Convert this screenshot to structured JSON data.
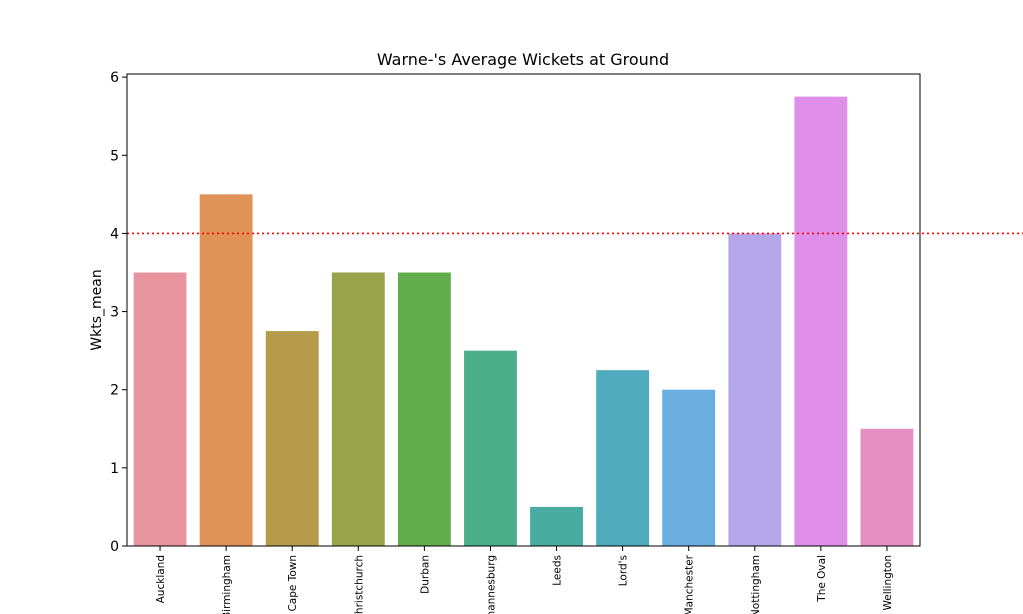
{
  "chart_data": {
    "type": "bar",
    "title": "Warne-'s Average Wickets at Ground",
    "xlabel": "",
    "ylabel": "Wkts_mean",
    "ylim": [
      0,
      6.04
    ],
    "yticks": [
      0,
      1,
      2,
      3,
      4,
      5,
      6
    ],
    "categories": [
      "Auckland",
      "Birmingham",
      "Cape Town",
      "Christchurch",
      "Durban",
      "Johannesburg",
      "Leeds",
      "Lord's",
      "Manchester",
      "Nottingham",
      "The Oval",
      "Wellington"
    ],
    "values": [
      3.5,
      4.5,
      2.75,
      3.5,
      3.5,
      2.5,
      0.5,
      2.25,
      2.0,
      4.0,
      5.75,
      1.5
    ],
    "colors": [
      "#e8959f",
      "#e09257",
      "#b59b4a",
      "#98a34a",
      "#62ad4b",
      "#4caf8b",
      "#4aaba2",
      "#4fabbd",
      "#6aaee0",
      "#b5a6ea",
      "#df8ee9",
      "#e68fc4"
    ],
    "reference_line": {
      "value": 4,
      "color": "#ff0000",
      "style": "dotted"
    },
    "grid": false
  }
}
